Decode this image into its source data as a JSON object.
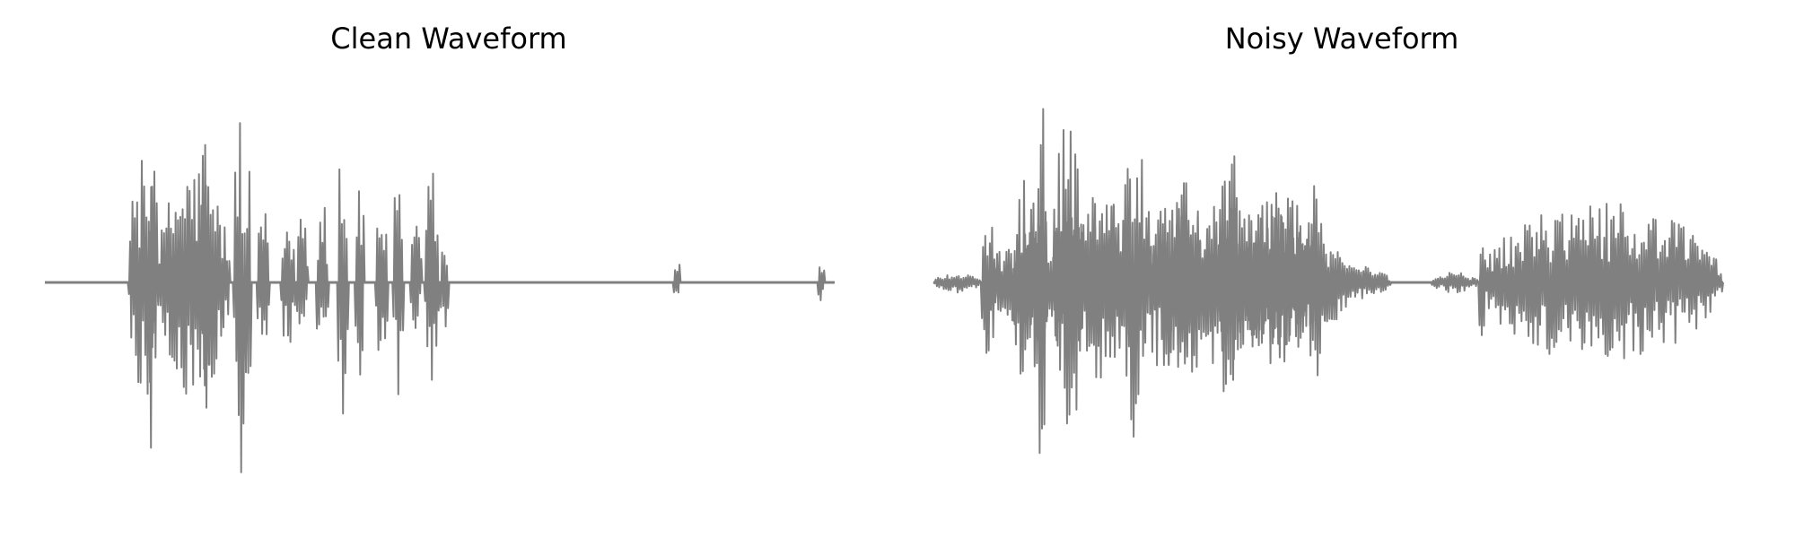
{
  "chart_data": [
    {
      "type": "line",
      "title": "Clean Waveform",
      "xlabel": "",
      "ylabel": "",
      "axes_visible": false,
      "grid": false,
      "legend": "none",
      "color": "#808080",
      "ylim": [
        -1,
        1
      ],
      "x_range": [
        0,
        1
      ],
      "segments": [
        {
          "kind": "silence",
          "x": [
            0.0,
            0.105
          ]
        },
        {
          "kind": "burst",
          "x": [
            0.105,
            0.142
          ],
          "peak": 0.62
        },
        {
          "kind": "burst",
          "x": [
            0.13,
            0.143
          ],
          "peak": 0.99
        },
        {
          "kind": "burst",
          "x": [
            0.142,
            0.235
          ],
          "peak": 0.6
        },
        {
          "kind": "burst",
          "x": [
            0.197,
            0.209
          ],
          "peak": 0.82
        },
        {
          "kind": "burst",
          "x": [
            0.238,
            0.262
          ],
          "peak": 0.95
        },
        {
          "kind": "burst",
          "x": [
            0.268,
            0.285
          ],
          "peak": 0.37
        },
        {
          "kind": "burst",
          "x": [
            0.298,
            0.318
          ],
          "peak": 0.35
        },
        {
          "kind": "burst",
          "x": [
            0.318,
            0.334
          ],
          "peak": 0.45
        },
        {
          "kind": "burst",
          "x": [
            0.343,
            0.36
          ],
          "peak": 0.48
        },
        {
          "kind": "burst",
          "x": [
            0.37,
            0.385
          ],
          "peak": 0.92
        },
        {
          "kind": "burst",
          "x": [
            0.392,
            0.405
          ],
          "peak": 0.57
        },
        {
          "kind": "burst",
          "x": [
            0.418,
            0.435
          ],
          "peak": 0.42
        },
        {
          "kind": "burst",
          "x": [
            0.44,
            0.455
          ],
          "peak": 0.56
        },
        {
          "kind": "burst",
          "x": [
            0.462,
            0.478
          ],
          "peak": 0.29
        },
        {
          "kind": "burst",
          "x": [
            0.48,
            0.5
          ],
          "peak": 0.59
        },
        {
          "kind": "burst",
          "x": [
            0.5,
            0.512
          ],
          "peak": 0.26
        },
        {
          "kind": "silence",
          "x": [
            0.512,
            0.795
          ]
        },
        {
          "kind": "click",
          "x": [
            0.795,
            0.805
          ],
          "peak": 0.14
        },
        {
          "kind": "silence",
          "x": [
            0.805,
            0.978
          ]
        },
        {
          "kind": "click",
          "x": [
            0.978,
            0.988
          ],
          "peak": 0.1
        },
        {
          "kind": "silence",
          "x": [
            0.988,
            1.0
          ]
        }
      ]
    },
    {
      "type": "line",
      "title": "Noisy Waveform",
      "xlabel": "",
      "ylabel": "",
      "axes_visible": false,
      "grid": false,
      "legend": "none",
      "color": "#808080",
      "ylim": [
        -1,
        1
      ],
      "x_range": [
        0,
        1
      ],
      "segments": [
        {
          "kind": "burst",
          "x": [
            0.0,
            0.06
          ],
          "peak": 0.05
        },
        {
          "kind": "burst",
          "x": [
            0.06,
            0.54
          ],
          "peak": 0.42
        },
        {
          "kind": "burst",
          "x": [
            0.06,
            0.08
          ],
          "peak": 0.38
        },
        {
          "kind": "burst",
          "x": [
            0.1,
            0.14
          ],
          "peak": 0.6
        },
        {
          "kind": "burst",
          "x": [
            0.13,
            0.145
          ],
          "peak": 0.99
        },
        {
          "kind": "burst",
          "x": [
            0.15,
            0.19
          ],
          "peak": 0.8
        },
        {
          "kind": "burst",
          "x": [
            0.19,
            0.24
          ],
          "peak": 0.55
        },
        {
          "kind": "burst",
          "x": [
            0.24,
            0.27
          ],
          "peak": 0.9
        },
        {
          "kind": "burst",
          "x": [
            0.27,
            0.36
          ],
          "peak": 0.5
        },
        {
          "kind": "burst",
          "x": [
            0.36,
            0.39
          ],
          "peak": 0.7
        },
        {
          "kind": "burst",
          "x": [
            0.39,
            0.49
          ],
          "peak": 0.45
        },
        {
          "kind": "burst",
          "x": [
            0.47,
            0.5
          ],
          "peak": 0.5
        },
        {
          "kind": "burst",
          "x": [
            0.5,
            0.58
          ],
          "peak": 0.08
        },
        {
          "kind": "silence",
          "x": [
            0.58,
            0.63
          ]
        },
        {
          "kind": "burst",
          "x": [
            0.63,
            0.69
          ],
          "peak": 0.05
        },
        {
          "kind": "burst",
          "x": [
            0.69,
            1.0
          ],
          "peak": 0.4
        },
        {
          "kind": "burst",
          "x": [
            0.69,
            0.7
          ],
          "peak": 0.38
        }
      ]
    }
  ]
}
